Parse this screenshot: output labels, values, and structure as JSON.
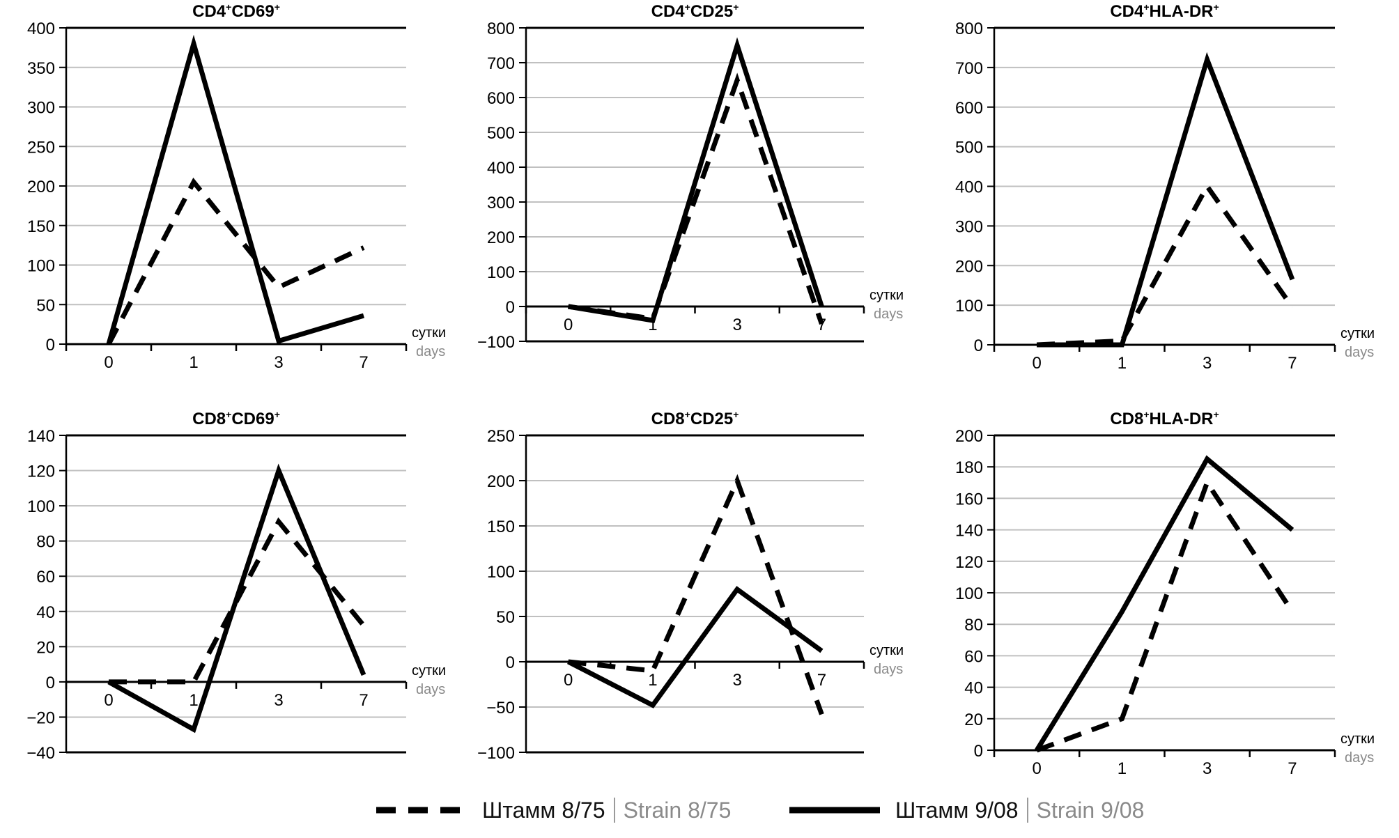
{
  "chart_data": [
    {
      "type": "line",
      "title": "CD4+CD69+",
      "title_parts": [
        "CD4",
        "+",
        "CD69",
        "+"
      ],
      "categories": [
        "0",
        "1",
        "3",
        "7"
      ],
      "xlabel": "сутки",
      "xlabel_en": "days",
      "ylabel": "",
      "ylim": [
        0,
        400
      ],
      "yticks": [
        0,
        50,
        100,
        150,
        200,
        250,
        300,
        350,
        400
      ],
      "grid": true,
      "series": [
        {
          "name": "Штамм 8/75 | Strain 8/75",
          "style": "dashed",
          "values": [
            0,
            205,
            72,
            122
          ]
        },
        {
          "name": "Штамм 9/08 | Strain 9/08",
          "style": "solid",
          "values": [
            0,
            380,
            4,
            36
          ]
        }
      ]
    },
    {
      "type": "line",
      "title": "CD4+CD25+",
      "title_parts": [
        "CD4",
        "+",
        "CD25",
        "+"
      ],
      "categories": [
        "0",
        "1",
        "3",
        "7"
      ],
      "xlabel": "сутки",
      "xlabel_en": "days",
      "ylabel": "",
      "ylim": [
        -100,
        800
      ],
      "yticks": [
        -100,
        0,
        100,
        200,
        300,
        400,
        500,
        600,
        700,
        800
      ],
      "grid": true,
      "series": [
        {
          "name": "Штамм 8/75 | Strain 8/75",
          "style": "dashed",
          "values": [
            0,
            -35,
            650,
            -50
          ]
        },
        {
          "name": "Штамм 9/08 | Strain 9/08",
          "style": "solid",
          "values": [
            0,
            -40,
            750,
            0
          ]
        }
      ]
    },
    {
      "type": "line",
      "title": "CD4+HLA-DR+",
      "title_parts": [
        "CD4",
        "+",
        "HLA-DR",
        "+"
      ],
      "categories": [
        "0",
        "1",
        "3",
        "7"
      ],
      "xlabel": "сутки",
      "xlabel_en": "days",
      "ylabel": "",
      "ylim": [
        0,
        800
      ],
      "yticks": [
        0,
        100,
        200,
        300,
        400,
        500,
        600,
        700,
        800
      ],
      "grid": true,
      "series": [
        {
          "name": "Штамм 8/75 | Strain 8/75",
          "style": "dashed",
          "values": [
            0,
            10,
            400,
            95
          ]
        },
        {
          "name": "Штамм 9/08 | Strain 9/08",
          "style": "solid",
          "values": [
            0,
            0,
            720,
            165
          ]
        }
      ]
    },
    {
      "type": "line",
      "title": "CD8+CD69+",
      "title_parts": [
        "CD8",
        "+",
        "CD69",
        "+"
      ],
      "categories": [
        "0",
        "1",
        "3",
        "7"
      ],
      "xlabel": "сутки",
      "xlabel_en": "days",
      "ylabel": "",
      "ylim": [
        -40,
        140
      ],
      "yticks": [
        -40,
        -20,
        0,
        20,
        40,
        60,
        80,
        100,
        120,
        140
      ],
      "grid": true,
      "series": [
        {
          "name": "Штамм 8/75 | Strain 8/75",
          "style": "dashed",
          "values": [
            0,
            0,
            91,
            32
          ]
        },
        {
          "name": "Штамм 9/08 | Strain 9/08",
          "style": "solid",
          "values": [
            0,
            -27,
            120,
            4
          ]
        }
      ]
    },
    {
      "type": "line",
      "title": "CD8+CD25+",
      "title_parts": [
        "CD8",
        "+",
        "CD25",
        "+"
      ],
      "categories": [
        "0",
        "1",
        "3",
        "7"
      ],
      "xlabel": "сутки",
      "xlabel_en": "days",
      "ylabel": "",
      "ylim": [
        -100,
        250
      ],
      "yticks": [
        -100,
        -50,
        0,
        50,
        100,
        150,
        200,
        250
      ],
      "grid": true,
      "series": [
        {
          "name": "Штамм 8/75 | Strain 8/75",
          "style": "dashed",
          "values": [
            0,
            -10,
            200,
            -58
          ]
        },
        {
          "name": "Штамм 9/08 | Strain 9/08",
          "style": "solid",
          "values": [
            0,
            -48,
            80,
            12
          ]
        }
      ]
    },
    {
      "type": "line",
      "title": "CD8+HLA-DR+",
      "title_parts": [
        "CD8",
        "+",
        "HLA-DR",
        "+"
      ],
      "categories": [
        "0",
        "1",
        "3",
        "7"
      ],
      "xlabel": "сутки",
      "xlabel_en": "days",
      "ylabel": "",
      "ylim": [
        0,
        200
      ],
      "yticks": [
        0,
        20,
        40,
        60,
        80,
        100,
        120,
        140,
        160,
        180,
        200
      ],
      "grid": true,
      "series": [
        {
          "name": "Штамм 8/75 | Strain 8/75",
          "style": "dashed",
          "values": [
            0,
            20,
            170,
            88
          ]
        },
        {
          "name": "Штамм 9/08 | Strain 9/08",
          "style": "solid",
          "values": [
            0,
            88,
            185,
            140
          ]
        }
      ]
    }
  ],
  "legend": {
    "placement": "bottom-center",
    "items": [
      {
        "style": "dashed",
        "label_ru": "Штамм 8/75",
        "label_en": "Strain 8/75"
      },
      {
        "style": "solid",
        "label_ru": "Штамм 9/08",
        "label_en": "Strain 9/08"
      }
    ]
  },
  "colors": {
    "line": "#000000",
    "grid": "#c0c0c0",
    "axis": "#000000",
    "secondary_text": "#8a8a8a"
  }
}
